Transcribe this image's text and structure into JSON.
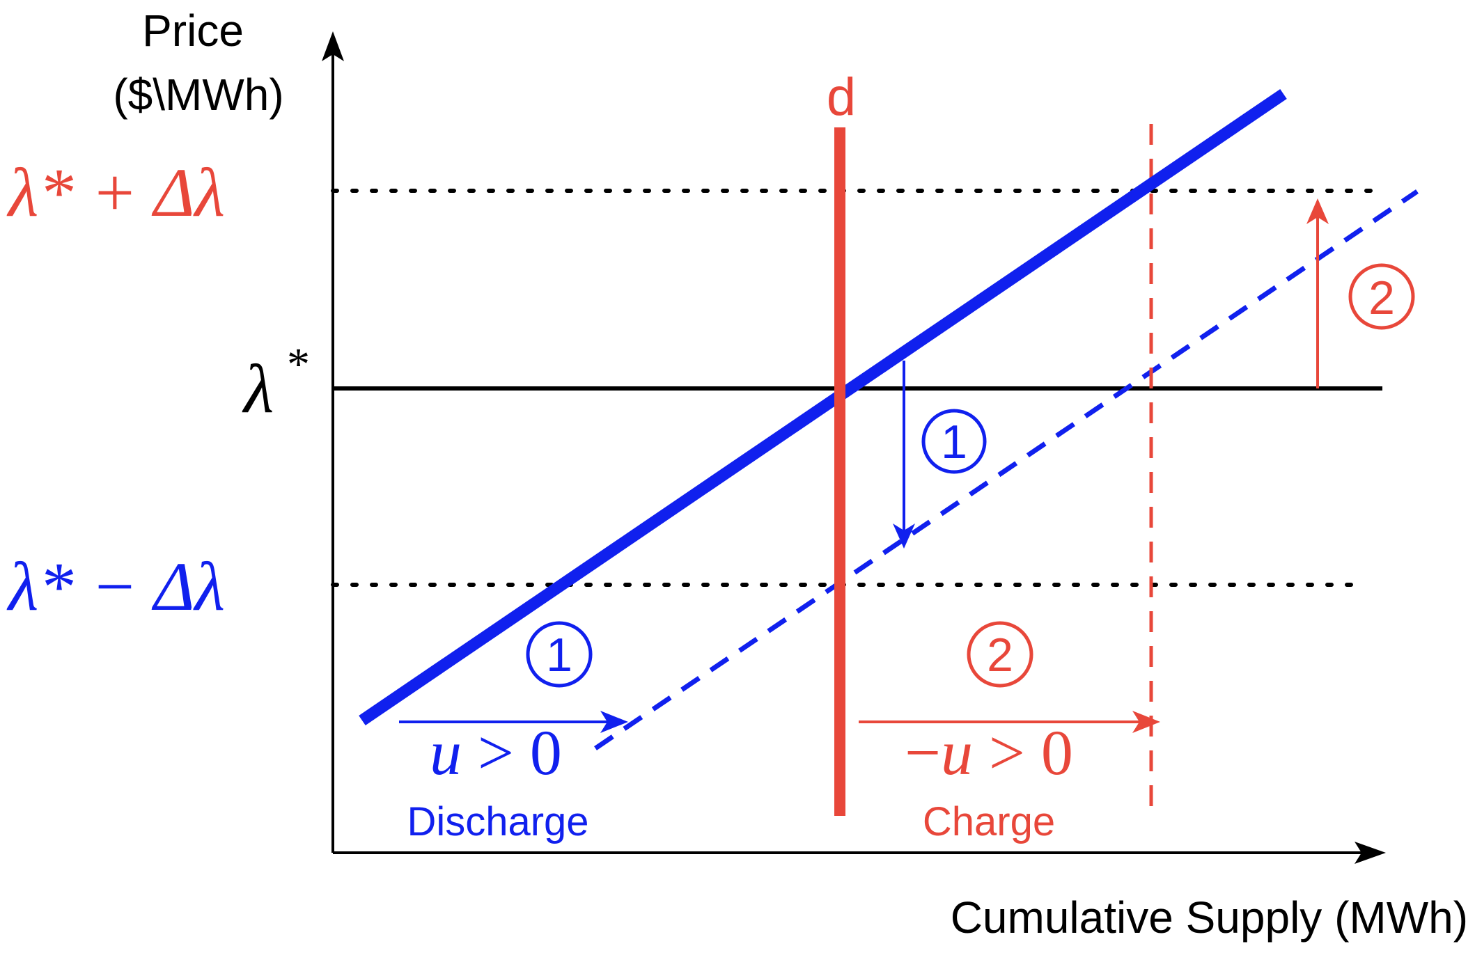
{
  "colors": {
    "blue": "#1020ee",
    "red": "#e8473a",
    "black": "#000000"
  },
  "axes": {
    "y_label_line1": "Price",
    "y_label_line2": "($\\MWh)",
    "x_label": "Cumulative Supply (MWh)"
  },
  "price_levels": {
    "upper_main": "λ* + Δ",
    "upper_lambda": "λ",
    "mid_lambda": "λ",
    "mid_star": "*",
    "lower_main": "λ* − Δ",
    "lower_lambda": "λ"
  },
  "demand": {
    "label": "d"
  },
  "step_markers": {
    "one_label": "1",
    "two_label": "2"
  },
  "discharge": {
    "inequality_var": "u",
    "inequality_rest": " > 0",
    "label": "Discharge"
  },
  "charge": {
    "inequality_minus": "−",
    "inequality_var": "u",
    "inequality_rest": " > 0",
    "label": "Charge"
  }
}
